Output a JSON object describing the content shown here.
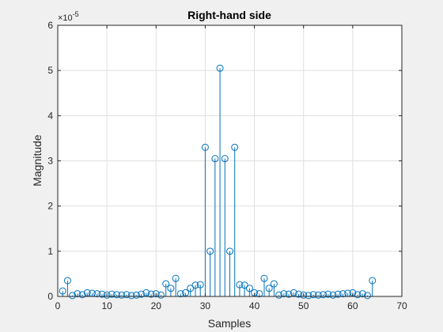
{
  "chart_data": {
    "type": "stem",
    "title": "Right-hand side",
    "xlabel": "Samples",
    "ylabel": "Magnitude",
    "xlim": [
      0,
      70
    ],
    "ylim": [
      0,
      6
    ],
    "x_ticks": [
      0,
      10,
      20,
      30,
      40,
      50,
      60,
      70
    ],
    "y_ticks": [
      0,
      1,
      2,
      3,
      4,
      5,
      6
    ],
    "y_exponent_label": "×10",
    "y_exponent_power": "-5",
    "grid": true,
    "series": [
      {
        "name": "Magnitude",
        "color": "#0072BD",
        "marker": "circle",
        "x": [
          1,
          2,
          3,
          4,
          5,
          6,
          7,
          8,
          9,
          10,
          11,
          12,
          13,
          14,
          15,
          16,
          17,
          18,
          19,
          20,
          21,
          22,
          23,
          24,
          25,
          26,
          27,
          28,
          29,
          30,
          31,
          32,
          33,
          34,
          35,
          36,
          37,
          38,
          39,
          40,
          41,
          42,
          43,
          44,
          45,
          46,
          47,
          48,
          49,
          50,
          51,
          52,
          53,
          54,
          55,
          56,
          57,
          58,
          59,
          60,
          61,
          62,
          63,
          64
        ],
        "values": [
          0.12,
          0.35,
          0.02,
          0.06,
          0.04,
          0.08,
          0.07,
          0.06,
          0.05,
          0.03,
          0.05,
          0.04,
          0.03,
          0.04,
          0.02,
          0.03,
          0.05,
          0.08,
          0.05,
          0.06,
          0.03,
          0.28,
          0.18,
          0.4,
          0.06,
          0.08,
          0.18,
          0.25,
          0.26,
          3.3,
          1.0,
          3.05,
          5.05,
          3.05,
          1.0,
          3.3,
          0.26,
          0.25,
          0.18,
          0.08,
          0.06,
          0.4,
          0.18,
          0.28,
          0.03,
          0.06,
          0.05,
          0.08,
          0.05,
          0.03,
          0.02,
          0.04,
          0.03,
          0.04,
          0.05,
          0.03,
          0.05,
          0.06,
          0.07,
          0.08,
          0.04,
          0.06,
          0.02,
          0.35
        ]
      }
    ]
  },
  "colors": {
    "figure_bg": "#f0f0f0",
    "axes_bg": "#ffffff",
    "axis_line": "#262626",
    "grid": "#dfdfdf",
    "text": "#262626"
  }
}
